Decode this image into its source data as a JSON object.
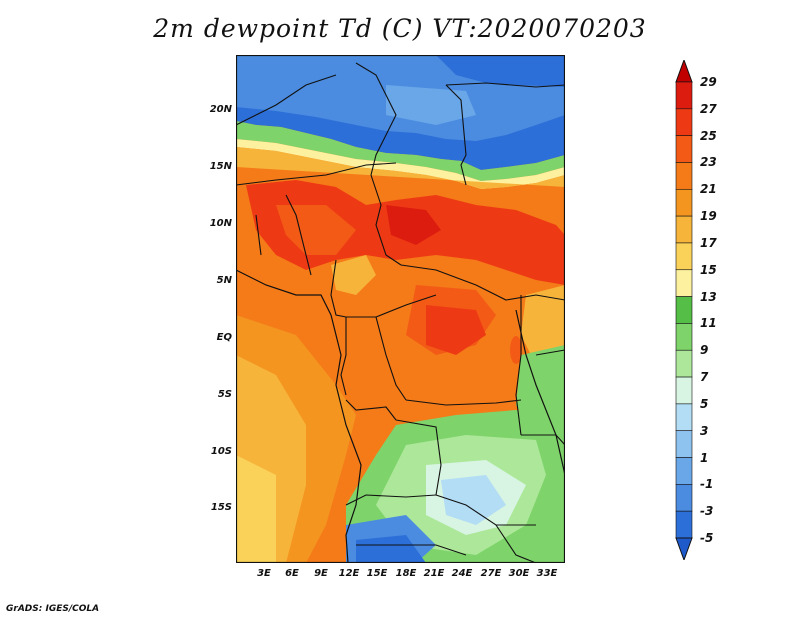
{
  "title": "2m dewpoint Td (C) VT:2020070203",
  "lat_labels": [
    "20N",
    "15N",
    "10N",
    "5N",
    "EQ",
    "5S",
    "10S",
    "15S"
  ],
  "lon_labels": [
    "3E",
    "6E",
    "9E",
    "12E",
    "15E",
    "18E",
    "21E",
    "24E",
    "27E",
    "30E",
    "33E"
  ],
  "colorbar": {
    "labels": [
      "29",
      "27",
      "25",
      "23",
      "21",
      "19",
      "17",
      "15",
      "13",
      "11",
      "9",
      "7",
      "5",
      "3",
      "1",
      "-1",
      "-3",
      "-5"
    ],
    "colors": [
      "#c00000",
      "#dd1c10",
      "#ee3a14",
      "#f35a16",
      "#f57a18",
      "#f49520",
      "#f7b43a",
      "#fad25a",
      "#fdf1a0",
      "#54be46",
      "#7ed46a",
      "#ade89a",
      "#d7f5e2",
      "#b3dcf5",
      "#8ec2ef",
      "#6aa7e8",
      "#4b8ce0",
      "#2d6fd8",
      "#1f5acb"
    ]
  },
  "credit": "GrADS: IGES/COLA"
}
